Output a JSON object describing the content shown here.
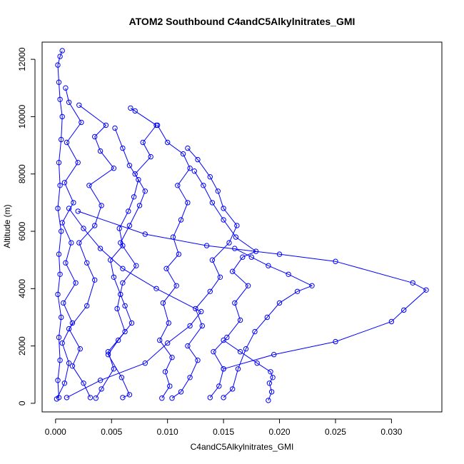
{
  "chart_data": {
    "type": "scatter",
    "title": "ATOM2 Southbound C4andC5Alkylnitrates_GMI",
    "xlabel": "C4andC5Alkylnitrates_GMI",
    "ylabel": "Altitude (m)",
    "xlim": [
      -0.0012,
      0.0345
    ],
    "ylim": [
      -300,
      12600
    ],
    "xticks": [
      0.0,
      0.005,
      0.01,
      0.015,
      0.02,
      0.025,
      0.03
    ],
    "xtick_labels": [
      "0.000",
      "0.005",
      "0.010",
      "0.015",
      "0.020",
      "0.025",
      "0.030"
    ],
    "yticks": [
      0,
      2000,
      4000,
      6000,
      8000,
      10000,
      12000
    ],
    "ytick_labels": [
      "0",
      "2000",
      "4000",
      "6000",
      "8000",
      "10000",
      "12000"
    ],
    "grid": false,
    "color": "#0000ff",
    "series": [
      {
        "points": [
          [
            0.0003,
            200
          ],
          [
            0.0002,
            800
          ],
          [
            0.0004,
            1500
          ],
          [
            0.0003,
            2300
          ],
          [
            0.0005,
            3000
          ],
          [
            0.0002,
            3800
          ],
          [
            0.0004,
            4500
          ],
          [
            0.0003,
            5200
          ],
          [
            0.0005,
            6000
          ],
          [
            0.0002,
            6800
          ],
          [
            0.0004,
            7600
          ],
          [
            0.0003,
            8400
          ],
          [
            0.0005,
            9200
          ],
          [
            0.0006,
            10000
          ],
          [
            0.0004,
            10600
          ],
          [
            0.0003,
            11200
          ],
          [
            0.0002,
            11800
          ],
          [
            0.0004,
            12100
          ],
          [
            0.0006,
            12300
          ]
        ]
      },
      {
        "points": [
          [
            0.0001,
            150
          ],
          [
            0.0008,
            700
          ],
          [
            0.0012,
            1400
          ],
          [
            0.0006,
            2100
          ],
          [
            0.0015,
            2800
          ],
          [
            0.0007,
            3500
          ],
          [
            0.0018,
            4200
          ],
          [
            0.0009,
            4900
          ],
          [
            0.0014,
            5600
          ],
          [
            0.0006,
            6300
          ],
          [
            0.0016,
            7000
          ],
          [
            0.0008,
            7700
          ],
          [
            0.002,
            8400
          ],
          [
            0.001,
            9100
          ],
          [
            0.0023,
            9800
          ],
          [
            0.0012,
            10500
          ],
          [
            0.0009,
            11000
          ]
        ]
      },
      {
        "points": [
          [
            0.0031,
            200
          ],
          [
            0.0025,
            700
          ],
          [
            0.0015,
            1300
          ],
          [
            0.0022,
            1900
          ],
          [
            0.0012,
            2600
          ],
          [
            0.0028,
            3400
          ],
          [
            0.0035,
            4300
          ],
          [
            0.0028,
            4900
          ],
          [
            0.0021,
            5600
          ],
          [
            0.0035,
            6200
          ],
          [
            0.0041,
            6900
          ],
          [
            0.003,
            7600
          ],
          [
            0.0052,
            8200
          ],
          [
            0.004,
            8800
          ],
          [
            0.0035,
            9300
          ],
          [
            0.0045,
            9700
          ],
          [
            0.0021,
            10400
          ]
        ]
      },
      {
        "points": [
          [
            0.0036,
            180
          ],
          [
            0.0041,
            500
          ],
          [
            0.0052,
            1200
          ],
          [
            0.0047,
            1800
          ],
          [
            0.0062,
            2500
          ],
          [
            0.0055,
            3300
          ],
          [
            0.006,
            4200
          ],
          [
            0.0072,
            4800
          ],
          [
            0.0058,
            5600
          ],
          [
            0.0066,
            6200
          ],
          [
            0.0075,
            6900
          ],
          [
            0.008,
            7400
          ],
          [
            0.0071,
            8000
          ],
          [
            0.0085,
            8600
          ],
          [
            0.0078,
            9100
          ],
          [
            0.009,
            9700
          ],
          [
            0.0067,
            10300
          ],
          [
            0.0071,
            10200
          ]
        ]
      },
      {
        "points": [
          [
            0.006,
            200
          ],
          [
            0.0066,
            300
          ],
          [
            0.0059,
            900
          ],
          [
            0.0047,
            1700
          ],
          [
            0.0056,
            2200
          ],
          [
            0.0068,
            2800
          ],
          [
            0.0062,
            3400
          ],
          [
            0.0058,
            3800
          ],
          [
            0.0052,
            4400
          ],
          [
            0.0049,
            5000
          ],
          [
            0.006,
            5500
          ],
          [
            0.0057,
            6100
          ],
          [
            0.0065,
            6700
          ],
          [
            0.007,
            7200
          ],
          [
            0.0074,
            7800
          ],
          [
            0.0066,
            8300
          ],
          [
            0.006,
            8900
          ],
          [
            0.0053,
            9600
          ]
        ]
      },
      {
        "points": [
          [
            0.0095,
            180
          ],
          [
            0.0102,
            600
          ],
          [
            0.0098,
            1100
          ],
          [
            0.0104,
            1600
          ],
          [
            0.0093,
            2200
          ],
          [
            0.0101,
            2800
          ],
          [
            0.0096,
            3500
          ],
          [
            0.0108,
            4100
          ],
          [
            0.0099,
            4700
          ],
          [
            0.011,
            5200
          ],
          [
            0.0105,
            5800
          ],
          [
            0.0112,
            6400
          ],
          [
            0.0118,
            7000
          ],
          [
            0.0109,
            7600
          ],
          [
            0.012,
            8200
          ],
          [
            0.0114,
            8700
          ],
          [
            0.01,
            9100
          ],
          [
            0.0091,
            9700
          ]
        ]
      },
      {
        "points": [
          [
            0.0104,
            180
          ],
          [
            0.0112,
            400
          ],
          [
            0.012,
            900
          ],
          [
            0.0127,
            1500
          ],
          [
            0.0118,
            2000
          ],
          [
            0.0131,
            2700
          ],
          [
            0.0125,
            3300
          ],
          [
            0.0138,
            3900
          ],
          [
            0.0147,
            4400
          ],
          [
            0.014,
            5000
          ],
          [
            0.0155,
            5600
          ],
          [
            0.0162,
            6200
          ],
          [
            0.015,
            6800
          ],
          [
            0.0145,
            7400
          ],
          [
            0.0138,
            7900
          ],
          [
            0.0127,
            8500
          ],
          [
            0.0118,
            8900
          ]
        ]
      },
      {
        "points": [
          [
            0.0138,
            200
          ],
          [
            0.0146,
            600
          ],
          [
            0.015,
            1200
          ],
          [
            0.0141,
            1800
          ],
          [
            0.0153,
            2300
          ],
          [
            0.0165,
            2900
          ],
          [
            0.016,
            3500
          ],
          [
            0.0172,
            4100
          ],
          [
            0.0158,
            4600
          ],
          [
            0.0167,
            5100
          ],
          [
            0.0179,
            5300
          ],
          [
            0.0161,
            5800
          ],
          [
            0.015,
            6400
          ],
          [
            0.014,
            7000
          ],
          [
            0.0132,
            7600
          ],
          [
            0.0124,
            8100
          ]
        ]
      },
      {
        "points": [
          [
            0.015,
            200
          ],
          [
            0.0158,
            500
          ],
          [
            0.0163,
            1200
          ],
          [
            0.017,
            1900
          ],
          [
            0.0178,
            2500
          ],
          [
            0.0189,
            3000
          ],
          [
            0.02,
            3500
          ],
          [
            0.0216,
            3900
          ],
          [
            0.0229,
            4100
          ],
          [
            0.0208,
            4500
          ],
          [
            0.019,
            4800
          ],
          [
            0.0175,
            5100
          ],
          [
            0.016,
            5400
          ]
        ]
      },
      {
        "points": [
          [
            0.019,
            100
          ],
          [
            0.0193,
            400
          ],
          [
            0.0191,
            700
          ],
          [
            0.0194,
            900
          ],
          [
            0.0192,
            1100
          ],
          [
            0.018,
            1400
          ],
          [
            0.0165,
            1800
          ],
          [
            0.015,
            2200
          ]
        ]
      },
      {
        "points": [
          [
            0.015,
            1200
          ],
          [
            0.0195,
            1700
          ],
          [
            0.025,
            2150
          ],
          [
            0.03,
            2850
          ],
          [
            0.0311,
            3250
          ],
          [
            0.0331,
            3950
          ],
          [
            0.0319,
            4200
          ],
          [
            0.025,
            4950
          ],
          [
            0.02,
            5200
          ],
          [
            0.0135,
            5500
          ],
          [
            0.008,
            5900
          ],
          [
            0.002,
            6700
          ]
        ]
      },
      {
        "points": [
          [
            0.001,
            200
          ],
          [
            0.004,
            800
          ],
          [
            0.008,
            1400
          ],
          [
            0.01,
            2100
          ],
          [
            0.012,
            2700
          ],
          [
            0.013,
            3200
          ],
          [
            0.009,
            4000
          ],
          [
            0.006,
            4700
          ],
          [
            0.004,
            5400
          ],
          [
            0.0025,
            6100
          ],
          [
            0.0012,
            6800
          ]
        ]
      }
    ]
  }
}
